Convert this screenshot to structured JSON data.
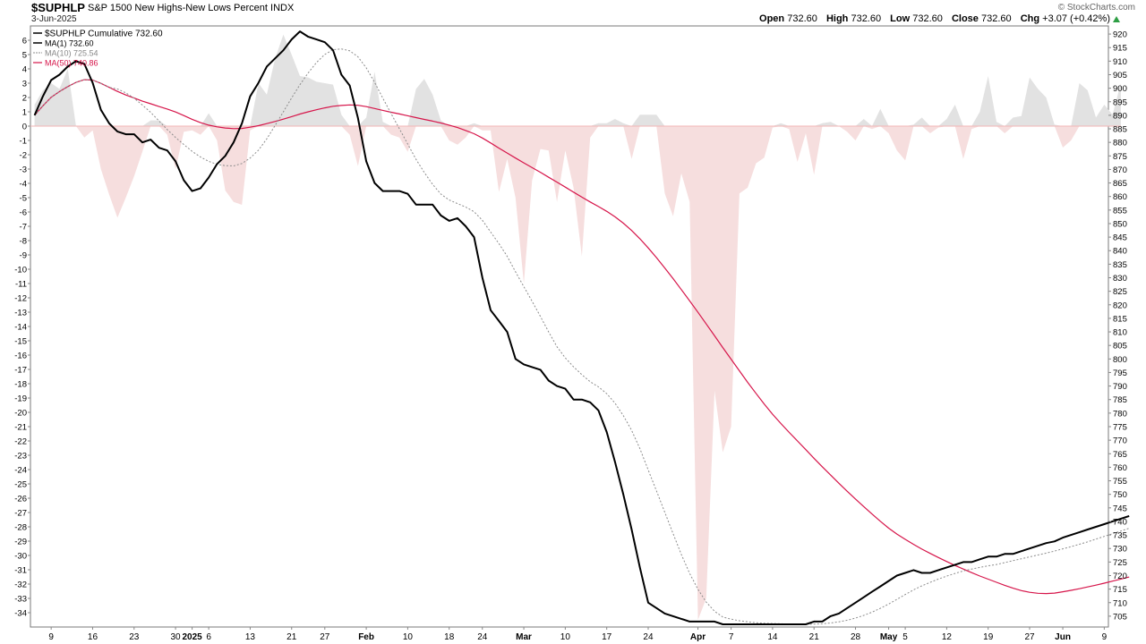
{
  "header": {
    "symbol": "$SUPHLP",
    "description": "S&P 1500 New Highs-New Lows Percent",
    "index_tag": "INDX",
    "date": "3-Jun-2025",
    "brand": "© StockCharts.com",
    "open_label": "Open",
    "open_value": "732.60",
    "high_label": "High",
    "high_value": "732.60",
    "low_label": "Low",
    "low_value": "732.60",
    "close_label": "Close",
    "close_value": "732.60",
    "chg_label": "Chg",
    "chg_value": "+3.07 (+0.42%)"
  },
  "colors": {
    "cumulative": "#000000",
    "ma10": "#8c8c8c",
    "ma50": "#d6154a",
    "positive_fill": "#e2e2e2",
    "negative_fill": "#f6dede",
    "zero_line": "#f2b6b6",
    "arrow": "#2e9e44"
  },
  "chart_data": {
    "type": "line",
    "legend_placement": "top-left",
    "legend": [
      "$SUPHLP Cumulative 732.60",
      "MA(1) 732.60",
      "MA(10) 725.54",
      "MA(50) 740.86"
    ],
    "left_axis": {
      "range": [
        -35,
        7
      ],
      "ticks": [
        6,
        5,
        4,
        3,
        2,
        1,
        0,
        -1,
        -2,
        -3,
        -4,
        -5,
        -6,
        -7,
        -8,
        -9,
        -10,
        -11,
        -12,
        -13,
        -14,
        -15,
        -16,
        -17,
        -18,
        -19,
        -20,
        -21,
        -22,
        -23,
        -24,
        -25,
        -26,
        -27,
        -28,
        -29,
        -30,
        -31,
        -32,
        -33,
        -34
      ]
    },
    "right_axis": {
      "range": [
        701,
        923
      ],
      "ticks": [
        920,
        915,
        910,
        905,
        900,
        895,
        890,
        885,
        880,
        875,
        870,
        865,
        860,
        855,
        850,
        845,
        840,
        835,
        830,
        825,
        820,
        815,
        810,
        805,
        800,
        795,
        790,
        785,
        780,
        775,
        770,
        765,
        760,
        755,
        750,
        745,
        740,
        735,
        730,
        725,
        720,
        715,
        710,
        705
      ]
    },
    "x_ticks": [
      {
        "label": "9",
        "i": 2,
        "bold": false
      },
      {
        "label": "16",
        "i": 7,
        "bold": false
      },
      {
        "label": "23",
        "i": 12,
        "bold": false
      },
      {
        "label": "30",
        "i": 17,
        "bold": false
      },
      {
        "label": "2025",
        "i": 19,
        "bold": true
      },
      {
        "label": "6",
        "i": 21,
        "bold": false
      },
      {
        "label": "13",
        "i": 26,
        "bold": false
      },
      {
        "label": "21",
        "i": 31,
        "bold": false
      },
      {
        "label": "27",
        "i": 35,
        "bold": false
      },
      {
        "label": "Feb",
        "i": 40,
        "bold": true
      },
      {
        "label": "10",
        "i": 45,
        "bold": false
      },
      {
        "label": "18",
        "i": 50,
        "bold": false
      },
      {
        "label": "24",
        "i": 54,
        "bold": false
      },
      {
        "label": "Mar",
        "i": 59,
        "bold": true
      },
      {
        "label": "10",
        "i": 64,
        "bold": false
      },
      {
        "label": "17",
        "i": 69,
        "bold": false
      },
      {
        "label": "24",
        "i": 74,
        "bold": false
      },
      {
        "label": "Apr",
        "i": 80,
        "bold": true
      },
      {
        "label": "7",
        "i": 84,
        "bold": false
      },
      {
        "label": "14",
        "i": 89,
        "bold": false
      },
      {
        "label": "21",
        "i": 94,
        "bold": false
      },
      {
        "label": "28",
        "i": 99,
        "bold": false
      },
      {
        "label": "May",
        "i": 103,
        "bold": true
      },
      {
        "label": "5",
        "i": 105,
        "bold": false
      },
      {
        "label": "12",
        "i": 110,
        "bold": false
      },
      {
        "label": "19",
        "i": 115,
        "bold": false
      },
      {
        "label": "27",
        "i": 120,
        "bold": false
      },
      {
        "label": "Jun",
        "i": 124,
        "bold": true
      },
      {
        "label": "9",
        "i": 129,
        "bold": false
      }
    ],
    "series": [
      {
        "name": "$SUPHLP",
        "axis": "left",
        "kind": "area",
        "values": [
          1.5,
          2.5,
          3,
          2.6,
          4,
          0,
          -0.8,
          -0.3,
          -3,
          -4.8,
          -6.4,
          -5,
          -3.5,
          -1.8,
          0.4,
          0.4,
          -0.6,
          -3,
          -0.4,
          -0.3,
          -0.6,
          0.9,
          -1,
          -4.5,
          -5.3,
          -5.5,
          -0.3,
          3,
          2.2,
          4.7,
          6.4,
          5,
          3.5,
          3.4,
          3.1,
          3,
          2.9,
          0.8,
          -0.6,
          -2.8,
          0.6,
          3.8,
          0.3,
          -0.6,
          -0.8,
          -1.8,
          2.6,
          3.3,
          2.2,
          0.4,
          -1,
          -1.3,
          -0.8,
          0.2,
          -0.3,
          -0.3,
          -4.6,
          -2.3,
          -5,
          -11,
          -3.8,
          -1.6,
          -1.7,
          -5.3,
          -1.7,
          -4.3,
          -9.1,
          -0.8,
          0.2,
          0.2,
          0.5,
          0.2,
          -2.3,
          0.8,
          0.8,
          0.8,
          -4.7,
          -6.3,
          -3.3,
          -5.3,
          -34.5,
          -33,
          -18.5,
          -22.8,
          -21,
          -4.7,
          -4.3,
          -2.6,
          -2.2,
          -0.1,
          0.2,
          -0.2,
          -2.5,
          -0.5,
          -3.4,
          0.2,
          0.3,
          0,
          -0.4,
          -1,
          0.5,
          -0.2,
          1.2,
          -0.5,
          -1.7,
          -2.4,
          0.1,
          0.6,
          -0.5,
          -0.1,
          0.5,
          1.5,
          -2.3,
          -0.2,
          1,
          3.5,
          0.3,
          -0.5,
          0.6,
          0.7,
          3.4,
          2.6,
          2,
          0.1,
          -1.5,
          -1,
          3,
          2.5,
          0.6,
          1.5,
          0.8,
          3
        ]
      },
      {
        "name": "MA(1)",
        "axis": "right",
        "kind": "line",
        "values": [
          890,
          897,
          903,
          905,
          908,
          910,
          909,
          902,
          892,
          887,
          884,
          883,
          883,
          880,
          881,
          878,
          877,
          873,
          866,
          862,
          863,
          867,
          872,
          875,
          880,
          887,
          897,
          902,
          908,
          911,
          914,
          918,
          921,
          919,
          918,
          917,
          914,
          905,
          901,
          889,
          873,
          865,
          862,
          862,
          862,
          861,
          857,
          857,
          857,
          853,
          851,
          852,
          849,
          845,
          830,
          818,
          814,
          810,
          800,
          798,
          797,
          796,
          792,
          790,
          789,
          785,
          785,
          784,
          781,
          773,
          762,
          750,
          737,
          723,
          710,
          708,
          706,
          705,
          704,
          703,
          703,
          703,
          703,
          702,
          702,
          702,
          702,
          702,
          702,
          702,
          702,
          702,
          702,
          702,
          703,
          703,
          705,
          706,
          708,
          710,
          712,
          714,
          716,
          718,
          720,
          721,
          722,
          721,
          721,
          722,
          723,
          724,
          725,
          725,
          726,
          727,
          727,
          728,
          728,
          729,
          730,
          731,
          732,
          732.6,
          734,
          735,
          736,
          737,
          738,
          739,
          740,
          741,
          742
        ]
      }
    ]
  }
}
